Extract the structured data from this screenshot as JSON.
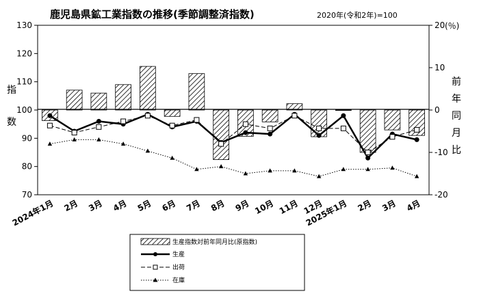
{
  "chart_data": {
    "type": "bar",
    "title": "鹿児島県鉱工業指数の推移(季節調整済指数)",
    "note": "2020年(令和2年)=100",
    "categories": [
      "2024年1月",
      "2月",
      "3月",
      "4月",
      "5月",
      "6月",
      "7月",
      "8月",
      "9月",
      "10月",
      "11月",
      "12月",
      "2025年1月",
      "2月",
      "3月",
      "4月"
    ],
    "left_axis": {
      "label": "指数",
      "ticks": [
        "130",
        "120",
        "110",
        "100",
        "90",
        "80",
        "70"
      ],
      "ylim": [
        70,
        130
      ]
    },
    "right_axis": {
      "label": "前年同月比",
      "unit": "(％)",
      "ticks": [
        "20",
        "10",
        "0",
        "-10",
        "-20"
      ],
      "ylim": [
        -20,
        20
      ]
    },
    "bar_series": {
      "name": "生産指数対前年同月比(原指数)",
      "axis": "right",
      "values": [
        -2.5,
        4.7,
        4.0,
        6.0,
        10.3,
        -1.5,
        8.6,
        -11.7,
        -6.2,
        -2.8,
        1.5,
        -6.3,
        0.0,
        -10.0,
        -4.7,
        -6.0
      ]
    },
    "series": [
      {
        "name": "生産",
        "axis": "left",
        "values": [
          98.0,
          92.5,
          96.0,
          95.0,
          98.5,
          94.0,
          96.0,
          88.5,
          92.0,
          91.5,
          98.5,
          91.0,
          98.0,
          83.0,
          91.5,
          89.5
        ]
      },
      {
        "name": "出荷",
        "axis": "left",
        "values": [
          94.5,
          92.0,
          94.0,
          96.0,
          98.0,
          94.5,
          96.5,
          88.0,
          95.0,
          93.5,
          98.0,
          93.5,
          93.5,
          85.0,
          90.5,
          93.0
        ]
      },
      {
        "name": "在庫",
        "axis": "left",
        "values": [
          88.0,
          89.5,
          89.5,
          88.0,
          85.5,
          83.0,
          79.0,
          80.0,
          77.5,
          78.5,
          78.5,
          76.5,
          79.0,
          79.0,
          79.5,
          76.5
        ]
      }
    ],
    "legend": {
      "position": "bottom-center"
    },
    "grid": false
  }
}
